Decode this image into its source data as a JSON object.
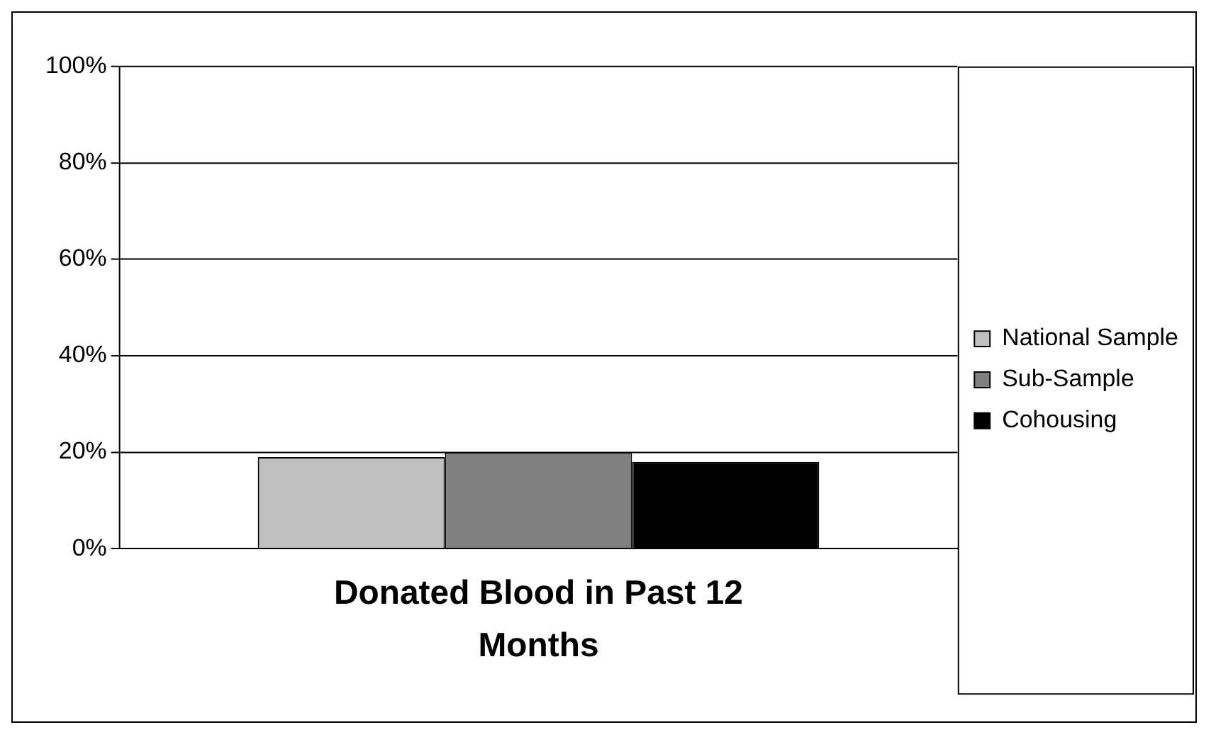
{
  "chart_data": {
    "type": "bar",
    "categories": [
      "Donated Blood in Past 12 Months"
    ],
    "series": [
      {
        "name": "National Sample",
        "color": "#c0c0c0",
        "values": [
          19
        ]
      },
      {
        "name": "Sub-Sample",
        "color": "#808080",
        "values": [
          20
        ]
      },
      {
        "name": "Cohousing",
        "color": "#000000",
        "values": [
          18
        ]
      }
    ],
    "ylim": [
      0,
      100
    ],
    "yticks": [
      {
        "value": 0,
        "label": "0%"
      },
      {
        "value": 20,
        "label": "20%"
      },
      {
        "value": 40,
        "label": "40%"
      },
      {
        "value": 60,
        "label": "60%"
      },
      {
        "value": 80,
        "label": "80%"
      },
      {
        "value": 100,
        "label": "100%"
      }
    ],
    "grid": "y",
    "legend": "right"
  }
}
